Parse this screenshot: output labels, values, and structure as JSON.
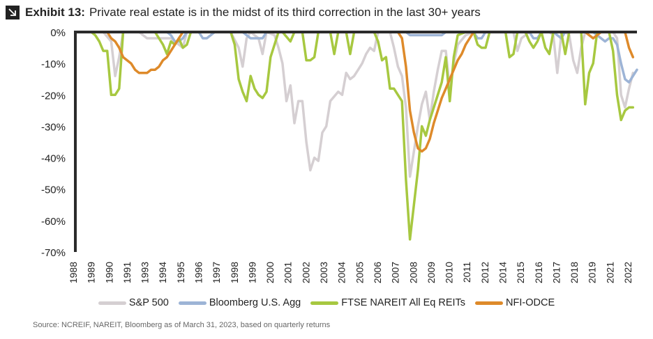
{
  "header": {
    "exhibit_label": "Exhibit 13:",
    "title": "Private real estate is in the midst of its third correction in the last 30+ years",
    "icon": "arrow-down-right-icon"
  },
  "source": "Source: NCREIF, NAREIT, Bloomberg as of March 31, 2023, based on quarterly returns",
  "chart_data": {
    "type": "line",
    "ylim": [
      -70,
      0
    ],
    "xlim": [
      1988,
      2023.25
    ],
    "y_ticks": [
      "0%",
      "-10%",
      "-20%",
      "-30%",
      "-40%",
      "-50%",
      "-60%",
      "-70%"
    ],
    "x_ticks": [
      "1988",
      "1989",
      "1990",
      "1991",
      "1993",
      "1994",
      "1995",
      "1996",
      "1997",
      "1998",
      "1999",
      "2000",
      "2001",
      "2002",
      "2003",
      "2004",
      "2005",
      "2006",
      "2007",
      "2008",
      "2009",
      "2010",
      "2011",
      "2012",
      "2014",
      "2015",
      "2016",
      "2017",
      "2018",
      "2019",
      "2021",
      "2022"
    ],
    "series": [
      {
        "name": "S&P 500",
        "color": "#d5cfd2",
        "points": [
          [
            1988,
            0
          ],
          [
            1989.75,
            0
          ],
          [
            1990.25,
            -3
          ],
          [
            1990.5,
            -14
          ],
          [
            1990.75,
            -8
          ],
          [
            1991,
            0
          ],
          [
            1992,
            0
          ],
          [
            1992.5,
            -2
          ],
          [
            1994,
            -2
          ],
          [
            1994.75,
            -5
          ],
          [
            1995,
            0
          ],
          [
            1997.75,
            0
          ],
          [
            1998.25,
            -5
          ],
          [
            1998.5,
            -11
          ],
          [
            1998.75,
            -2
          ],
          [
            1999,
            0
          ],
          [
            1999.5,
            -2
          ],
          [
            1999.75,
            -7
          ],
          [
            2000,
            0
          ],
          [
            2000.5,
            -1
          ],
          [
            2000.75,
            -5
          ],
          [
            2001,
            -10
          ],
          [
            2001.25,
            -22
          ],
          [
            2001.5,
            -17
          ],
          [
            2001.75,
            -29
          ],
          [
            2002,
            -22
          ],
          [
            2002.25,
            -22
          ],
          [
            2002.5,
            -35
          ],
          [
            2002.75,
            -44
          ],
          [
            2003,
            -40
          ],
          [
            2003.25,
            -41
          ],
          [
            2003.5,
            -32
          ],
          [
            2003.75,
            -30
          ],
          [
            2004,
            -22
          ],
          [
            2004.5,
            -19
          ],
          [
            2004.75,
            -20
          ],
          [
            2005,
            -13
          ],
          [
            2005.25,
            -15
          ],
          [
            2005.5,
            -14
          ],
          [
            2005.75,
            -12
          ],
          [
            2006,
            -10
          ],
          [
            2006.25,
            -7
          ],
          [
            2006.5,
            -5
          ],
          [
            2006.75,
            -6
          ],
          [
            2007,
            0
          ],
          [
            2007.75,
            0
          ],
          [
            2008,
            -5
          ],
          [
            2008.25,
            -11
          ],
          [
            2008.5,
            -14
          ],
          [
            2008.75,
            -24
          ],
          [
            2009,
            -46
          ],
          [
            2009.25,
            -38
          ],
          [
            2009.5,
            -30
          ],
          [
            2009.75,
            -23
          ],
          [
            2010,
            -19
          ],
          [
            2010.25,
            -28
          ],
          [
            2010.5,
            -19
          ],
          [
            2010.75,
            -12
          ],
          [
            2011,
            -6
          ],
          [
            2011.25,
            -6
          ],
          [
            2011.5,
            -18
          ],
          [
            2011.75,
            -10
          ],
          [
            2012,
            -4
          ],
          [
            2012.5,
            -1
          ],
          [
            2013,
            0
          ],
          [
            2015.5,
            0
          ],
          [
            2015.75,
            -6
          ],
          [
            2016,
            -2
          ],
          [
            2016.5,
            0
          ],
          [
            2017.75,
            0
          ],
          [
            2018,
            -1
          ],
          [
            2018.25,
            -13
          ],
          [
            2018.5,
            -1
          ],
          [
            2018.75,
            0
          ],
          [
            2019,
            -1
          ],
          [
            2019.25,
            -9
          ],
          [
            2019.5,
            -13
          ],
          [
            2019.75,
            -5
          ],
          [
            2020,
            0
          ],
          [
            2021.75,
            0
          ],
          [
            2022,
            -2
          ],
          [
            2022.25,
            -20
          ],
          [
            2022.5,
            -24
          ],
          [
            2022.75,
            -18
          ],
          [
            2023,
            -13
          ]
        ]
      },
      {
        "name": "Bloomberg U.S. Agg",
        "color": "#9db4d6",
        "points": [
          [
            1988,
            0
          ],
          [
            1993.75,
            0
          ],
          [
            1994,
            -1
          ],
          [
            1994.25,
            -3
          ],
          [
            1994.5,
            -3
          ],
          [
            1994.75,
            -2
          ],
          [
            1995,
            0
          ],
          [
            1995.75,
            0
          ],
          [
            1996,
            -2
          ],
          [
            1996.25,
            -2
          ],
          [
            1996.5,
            -1
          ],
          [
            1996.75,
            0
          ],
          [
            1998.5,
            0
          ],
          [
            1998.75,
            -1
          ],
          [
            1999,
            -2
          ],
          [
            1999.5,
            -2
          ],
          [
            1999.75,
            -2
          ],
          [
            2000,
            0
          ],
          [
            2008.75,
            0
          ],
          [
            2009,
            -1
          ],
          [
            2011,
            -1
          ],
          [
            2011.25,
            0
          ],
          [
            2013,
            0
          ],
          [
            2013.25,
            -2
          ],
          [
            2013.5,
            -2
          ],
          [
            2013.75,
            0
          ],
          [
            2015,
            0
          ],
          [
            2016.5,
            0
          ],
          [
            2016.75,
            -2
          ],
          [
            2017,
            -2
          ],
          [
            2017.25,
            0
          ],
          [
            2018,
            0
          ],
          [
            2018.25,
            -1
          ],
          [
            2018.5,
            -2
          ],
          [
            2018.75,
            0
          ],
          [
            2019,
            0
          ],
          [
            2020.5,
            0
          ],
          [
            2020.75,
            -1
          ],
          [
            2021,
            -2
          ],
          [
            2021.25,
            -3
          ],
          [
            2021.5,
            -2
          ],
          [
            2021.75,
            -2
          ],
          [
            2022,
            -4
          ],
          [
            2022.25,
            -10
          ],
          [
            2022.5,
            -15
          ],
          [
            2022.75,
            -16
          ],
          [
            2023,
            -14
          ],
          [
            2023.25,
            -12
          ]
        ]
      },
      {
        "name": "FTSE NAREIT All Eq REITs",
        "color": "#a7c840",
        "points": [
          [
            1988,
            0
          ],
          [
            1989,
            0
          ],
          [
            1989.25,
            -1
          ],
          [
            1989.5,
            -3
          ],
          [
            1989.75,
            -6
          ],
          [
            1990,
            -6
          ],
          [
            1990.25,
            -20
          ],
          [
            1990.5,
            -20
          ],
          [
            1990.75,
            -18
          ],
          [
            1991,
            0
          ],
          [
            1993,
            0
          ],
          [
            1993.25,
            -2
          ],
          [
            1993.5,
            -4
          ],
          [
            1993.75,
            -7
          ],
          [
            1994,
            -3
          ],
          [
            1994.25,
            -4
          ],
          [
            1994.5,
            -2
          ],
          [
            1994.75,
            -5
          ],
          [
            1995,
            -4
          ],
          [
            1995.25,
            0
          ],
          [
            1997.75,
            0
          ],
          [
            1998,
            -4
          ],
          [
            1998.25,
            -15
          ],
          [
            1998.5,
            -19
          ],
          [
            1998.75,
            -22
          ],
          [
            1999,
            -14
          ],
          [
            1999.25,
            -18
          ],
          [
            1999.5,
            -20
          ],
          [
            1999.75,
            -21
          ],
          [
            2000,
            -19
          ],
          [
            2000.25,
            -8
          ],
          [
            2000.5,
            -4
          ],
          [
            2000.75,
            0
          ],
          [
            2001,
            0
          ],
          [
            2001.5,
            -3
          ],
          [
            2001.75,
            0
          ],
          [
            2002.25,
            0
          ],
          [
            2002.5,
            -9
          ],
          [
            2002.75,
            -9
          ],
          [
            2003,
            -8
          ],
          [
            2003.25,
            0
          ],
          [
            2004,
            0
          ],
          [
            2004.25,
            -7
          ],
          [
            2004.5,
            0
          ],
          [
            2005,
            0
          ],
          [
            2005.25,
            -7
          ],
          [
            2005.5,
            0
          ],
          [
            2006.75,
            0
          ],
          [
            2007,
            -3
          ],
          [
            2007.25,
            -9
          ],
          [
            2007.5,
            -8
          ],
          [
            2007.75,
            -18
          ],
          [
            2008,
            -18
          ],
          [
            2008.25,
            -20
          ],
          [
            2008.5,
            -22
          ],
          [
            2008.75,
            -47
          ],
          [
            2009,
            -66
          ],
          [
            2009.25,
            -55
          ],
          [
            2009.5,
            -44
          ],
          [
            2009.75,
            -30
          ],
          [
            2010,
            -33
          ],
          [
            2010.25,
            -28
          ],
          [
            2010.5,
            -24
          ],
          [
            2010.75,
            -20
          ],
          [
            2011,
            -16
          ],
          [
            2011.25,
            -8
          ],
          [
            2011.5,
            -22
          ],
          [
            2011.75,
            -8
          ],
          [
            2012,
            -1
          ],
          [
            2012.5,
            0
          ],
          [
            2013,
            0
          ],
          [
            2013.25,
            -4
          ],
          [
            2013.5,
            -5
          ],
          [
            2013.75,
            -5
          ],
          [
            2014,
            0
          ],
          [
            2015,
            0
          ],
          [
            2015.25,
            -8
          ],
          [
            2015.5,
            -7
          ],
          [
            2015.75,
            0
          ],
          [
            2016.25,
            0
          ],
          [
            2016.5,
            -3
          ],
          [
            2016.75,
            -5
          ],
          [
            2017,
            -3
          ],
          [
            2017.25,
            0
          ],
          [
            2017.5,
            -5
          ],
          [
            2017.75,
            -7
          ],
          [
            2018,
            0
          ],
          [
            2018.5,
            0
          ],
          [
            2018.75,
            -7
          ],
          [
            2019,
            0
          ],
          [
            2019.75,
            0
          ],
          [
            2020,
            -23
          ],
          [
            2020.25,
            -13
          ],
          [
            2020.5,
            -10
          ],
          [
            2020.75,
            0
          ],
          [
            2021.5,
            0
          ],
          [
            2021.75,
            -6
          ],
          [
            2022,
            -20
          ],
          [
            2022.25,
            -28
          ],
          [
            2022.5,
            -25
          ],
          [
            2022.75,
            -24
          ],
          [
            2023,
            -24
          ]
        ]
      },
      {
        "name": "NFI-ODCE",
        "color": "#de8a2a",
        "points": [
          [
            1988,
            0
          ],
          [
            1990,
            0
          ],
          [
            1990.25,
            -2
          ],
          [
            1990.5,
            -3
          ],
          [
            1990.75,
            -5
          ],
          [
            1991,
            -8
          ],
          [
            1991.25,
            -9
          ],
          [
            1991.5,
            -10
          ],
          [
            1991.75,
            -12
          ],
          [
            1992,
            -13
          ],
          [
            1992.25,
            -13
          ],
          [
            1992.5,
            -13
          ],
          [
            1992.75,
            -12
          ],
          [
            1993,
            -12
          ],
          [
            1993.25,
            -11
          ],
          [
            1993.5,
            -9
          ],
          [
            1993.75,
            -8
          ],
          [
            1994,
            -6
          ],
          [
            1994.25,
            -4
          ],
          [
            1994.5,
            -2
          ],
          [
            1994.75,
            0
          ],
          [
            2008.25,
            0
          ],
          [
            2008.5,
            -2
          ],
          [
            2008.75,
            -11
          ],
          [
            2009,
            -25
          ],
          [
            2009.25,
            -32
          ],
          [
            2009.5,
            -37
          ],
          [
            2009.75,
            -38
          ],
          [
            2010,
            -37
          ],
          [
            2010.25,
            -34
          ],
          [
            2010.5,
            -29
          ],
          [
            2010.75,
            -25
          ],
          [
            2011,
            -21
          ],
          [
            2011.25,
            -18
          ],
          [
            2011.5,
            -15
          ],
          [
            2011.75,
            -12
          ],
          [
            2012,
            -9
          ],
          [
            2012.25,
            -7
          ],
          [
            2012.5,
            -4
          ],
          [
            2012.75,
            -2
          ],
          [
            2013,
            0
          ],
          [
            2020,
            0
          ],
          [
            2020.25,
            -1
          ],
          [
            2020.5,
            -2
          ],
          [
            2020.75,
            -1
          ],
          [
            2021,
            0
          ],
          [
            2022.5,
            0
          ],
          [
            2022.75,
            -5
          ],
          [
            2023,
            -8
          ]
        ]
      }
    ]
  }
}
